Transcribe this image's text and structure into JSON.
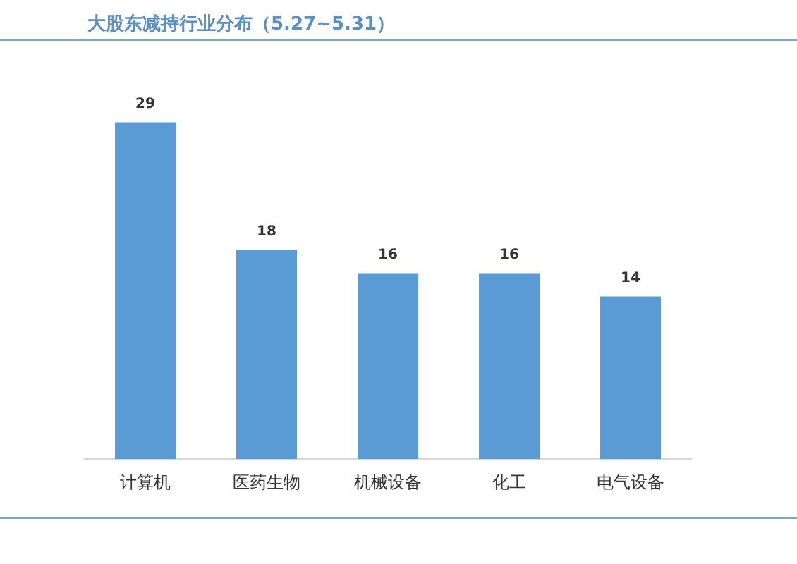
{
  "chart_data": {
    "type": "bar",
    "title": "大股东减持行业分布（5.27~5.31）",
    "categories": [
      "计算机",
      "医药生物",
      "机械设备",
      "化工",
      "电气设备"
    ],
    "values": [
      29,
      18,
      16,
      16,
      14
    ],
    "color": "#5b9bd5",
    "data_labels": true,
    "grid": false,
    "legend": false
  }
}
